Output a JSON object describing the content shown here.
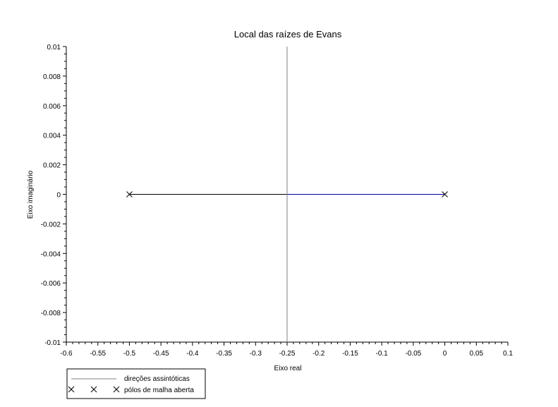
{
  "chart_data": {
    "type": "line",
    "title": "Local das raízes de Evans",
    "xlabel": "Eixo real",
    "ylabel": "Eixo imaginário",
    "xlim": [
      -0.6,
      0.1
    ],
    "ylim": [
      -0.01,
      0.01
    ],
    "x_ticks": [
      -0.6,
      -0.55,
      -0.5,
      -0.45,
      -0.4,
      -0.35,
      -0.3,
      -0.25,
      -0.2,
      -0.15,
      -0.1,
      -0.05,
      0,
      0.05,
      0.1
    ],
    "x_tick_labels": [
      "-0.6",
      "-0.55",
      "-0.5",
      "-0.45",
      "-0.4",
      "-0.35",
      "-0.3",
      "-0.25",
      "-0.2",
      "-0.15",
      "-0.1",
      "-0.05",
      "0",
      "0.05",
      "0.1"
    ],
    "y_ticks": [
      -0.01,
      -0.008,
      -0.006,
      -0.004,
      -0.002,
      0,
      0.002,
      0.004,
      0.006,
      0.008,
      0.01
    ],
    "y_tick_labels": [
      "-0.01",
      "-0.008",
      "-0.006",
      "-0.004",
      "-0.002",
      "0",
      "0.002",
      "0.004",
      "0.006",
      "0.008",
      "0.01"
    ],
    "grid": false,
    "legend_position": "below-left",
    "series": [
      {
        "color": "#000000",
        "x": [
          -0.5,
          -0.25
        ],
        "y": [
          0,
          0
        ]
      },
      {
        "color": "#0000a0",
        "x": [
          -0.25,
          0
        ],
        "y": [
          0,
          0
        ]
      },
      {
        "name": "direções assintóticas",
        "color": "#808080",
        "x": [
          -0.25,
          -0.25
        ],
        "y": [
          -0.01,
          0.01
        ]
      }
    ],
    "poles": {
      "name": "pólos de malha aberta",
      "marker": "x",
      "x": [
        -0.5,
        0
      ],
      "y": [
        0,
        0
      ]
    }
  }
}
